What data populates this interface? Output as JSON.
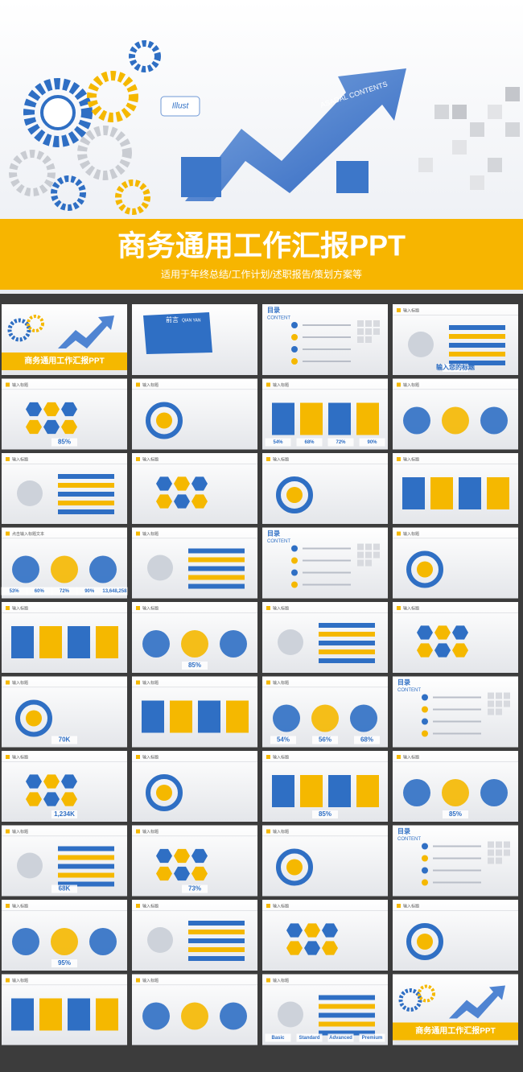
{
  "header": {
    "title": "商务通用工作汇报PPT",
    "subtitle": "适用于年终总结/工作计划/述职报告/策划方案等",
    "arrow_text": "ASADAL CONTENTS",
    "bubble_text": "Illust"
  },
  "slides": [
    {
      "texts": [
        "商务通用工作汇报PPT"
      ]
    },
    {
      "texts": [
        "前言",
        "QIAN YAN"
      ]
    },
    {
      "texts": [
        "目录",
        "CONTENT"
      ]
    },
    {
      "texts": [
        "输入标题",
        "输入您的标题"
      ]
    },
    {
      "texts": [
        "输入标题",
        "85%"
      ]
    },
    {
      "texts": [
        "输入标题"
      ]
    },
    {
      "texts": [
        "输入标题",
        "54%",
        "68%",
        "72%",
        "90%"
      ]
    },
    {
      "texts": [
        "输入标题"
      ]
    },
    {
      "texts": [
        "输入标题"
      ]
    },
    {
      "texts": [
        "输入标题"
      ]
    },
    {
      "texts": [
        "输入标题"
      ]
    },
    {
      "texts": [
        "输入标题"
      ]
    },
    {
      "texts": [
        "点击输入标题文本",
        "53%",
        "60%",
        "72%",
        "90%",
        "13,648,258"
      ]
    },
    {
      "texts": [
        "输入标题"
      ]
    },
    {
      "texts": [
        "目录",
        "CONTENT"
      ]
    },
    {
      "texts": [
        "输入标题"
      ]
    },
    {
      "texts": [
        "输入标题"
      ]
    },
    {
      "texts": [
        "输入标题",
        "85%"
      ]
    },
    {
      "texts": [
        "输入标题"
      ]
    },
    {
      "texts": [
        "输入标题"
      ]
    },
    {
      "texts": [
        "输入标题",
        "70K"
      ]
    },
    {
      "texts": [
        "输入标题"
      ]
    },
    {
      "texts": [
        "输入标题",
        "54%",
        "56%",
        "68%"
      ]
    },
    {
      "texts": [
        "目录",
        "CONTENT"
      ]
    },
    {
      "texts": [
        "输入标题",
        "1,234K"
      ]
    },
    {
      "texts": [
        "输入标题"
      ]
    },
    {
      "texts": [
        "输入标题",
        "85%"
      ]
    },
    {
      "texts": [
        "输入标题",
        "85%"
      ]
    },
    {
      "texts": [
        "输入标题",
        "68K"
      ]
    },
    {
      "texts": [
        "输入标题",
        "73%"
      ]
    },
    {
      "texts": [
        "输入标题"
      ]
    },
    {
      "texts": [
        "目录",
        "CONTENT"
      ]
    },
    {
      "texts": [
        "输入标题",
        "95%"
      ]
    },
    {
      "texts": [
        "输入标题"
      ]
    },
    {
      "texts": [
        "输入标题"
      ]
    },
    {
      "texts": [
        "输入标题"
      ]
    },
    {
      "texts": [
        "输入标题"
      ]
    },
    {
      "texts": [
        "输入标题"
      ]
    },
    {
      "texts": [
        "输入标题",
        "Basic",
        "Standard",
        "Advanced",
        "Premium"
      ]
    },
    {
      "texts": [
        "商务通用工作汇报PPT"
      ]
    }
  ]
}
